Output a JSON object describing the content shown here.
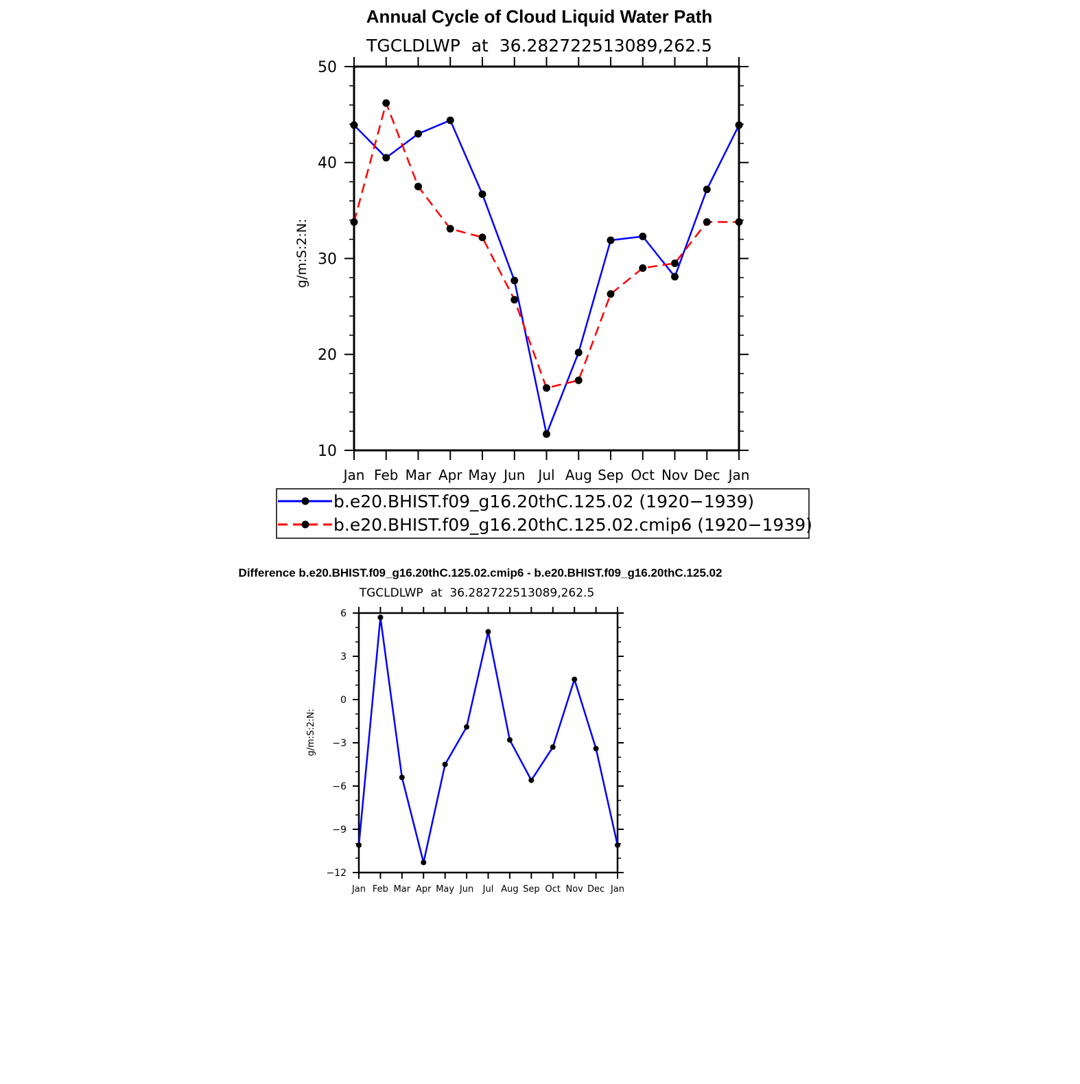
{
  "chart_data": [
    {
      "type": "line",
      "title": "Annual Cycle of Cloud Liquid Water Path",
      "subtitle": "TGCLDLWP  at  36.282722513089,262.5",
      "ylabel": "g/m:S:2:N:",
      "xlabel": "",
      "ylim": [
        10,
        50
      ],
      "yticks": [
        10,
        20,
        30,
        40,
        50
      ],
      "categories": [
        "Jan",
        "Feb",
        "Mar",
        "Apr",
        "May",
        "Jun",
        "Jul",
        "Aug",
        "Sep",
        "Oct",
        "Nov",
        "Dec",
        "Jan"
      ],
      "series": [
        {
          "name": "b.e20.BHIST.f09_g16.20thC.125.02 (1920−1939)",
          "color": "#0000ff",
          "dash": "solid",
          "values": [
            43.9,
            40.5,
            43.0,
            44.4,
            36.7,
            27.7,
            11.7,
            20.2,
            31.9,
            32.3,
            28.1,
            37.2,
            43.9
          ]
        },
        {
          "name": "b.e20.BHIST.f09_g16.20thC.125.02.cmip6 (1920−1939)",
          "color": "#ff0000",
          "dash": "dashed",
          "values": [
            33.8,
            46.2,
            37.5,
            33.1,
            32.2,
            25.7,
            16.5,
            17.3,
            26.3,
            29.0,
            29.5,
            33.8,
            33.8
          ]
        }
      ]
    },
    {
      "type": "line",
      "title": "Difference b.e20.BHIST.f09_g16.20thC.125.02.cmip6 - b.e20.BHIST.f09_g16.20thC.125.02",
      "subtitle": "TGCLDLWP  at  36.282722513089,262.5",
      "ylabel": "g/m:S:2:N:",
      "xlabel": "",
      "ylim": [
        -12,
        6
      ],
      "yticks": [
        -12,
        -9,
        -6,
        -3,
        0,
        3,
        6
      ],
      "categories": [
        "Jan",
        "Feb",
        "Mar",
        "Apr",
        "May",
        "Jun",
        "Jul",
        "Aug",
        "Sep",
        "Oct",
        "Nov",
        "Dec",
        "Jan"
      ],
      "series": [
        {
          "name": "difference",
          "color": "#0000ff",
          "dash": "solid",
          "values": [
            -10.1,
            5.7,
            -5.4,
            -11.3,
            -4.5,
            -1.9,
            4.7,
            -2.8,
            -5.6,
            -3.3,
            1.4,
            -3.4,
            -10.1
          ]
        }
      ]
    }
  ]
}
